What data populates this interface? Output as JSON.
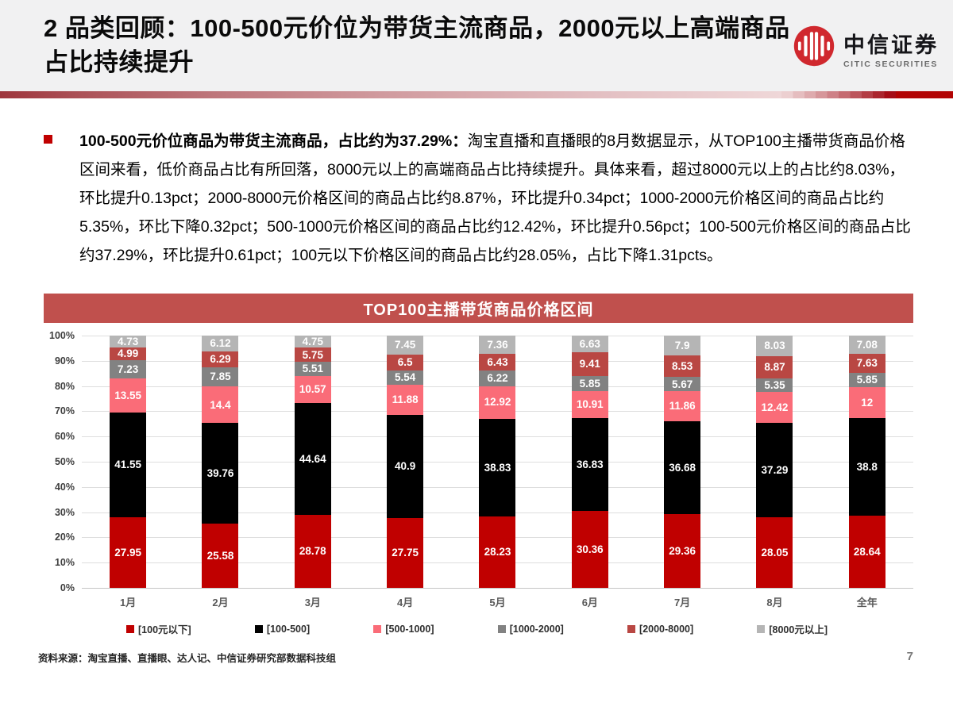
{
  "header": {
    "title": "2 品类回顾：100-500元价位为带货主流商品，2000元以上高端商品占比持续提升",
    "logo": {
      "brand_cn": "中信证券",
      "brand_en": "CITIC SECURITIES",
      "brand_color": "#d0282e"
    }
  },
  "body": {
    "lead": "100-500元价位商品为带货主流商品，占比约为37.29%：",
    "text": "淘宝直播和直播眼的8月数据显示，从TOP100主播带货商品价格区间来看，低价商品占比有所回落，8000元以上的高端商品占比持续提升。具体来看，超过8000元以上的占比约8.03%，环比提升0.13pct；2000-8000元价格区间的商品占比约8.87%，环比提升0.34pct；1000-2000元价格区间的商品占比约5.35%，环比下降0.32pct；500-1000元价格区间的商品占比约12.42%，环比提升0.56pct；100-500元价格区间的商品占比约37.29%，环比提升0.61pct；100元以下价格区间的商品占比约28.05%，占比下降1.31pcts。"
  },
  "chart_data": {
    "type": "bar",
    "stacked": true,
    "title": "TOP100主播带货商品价格区间",
    "title_bg": "#c0504d",
    "categories": [
      "1月",
      "2月",
      "3月",
      "4月",
      "5月",
      "6月",
      "7月",
      "8月",
      "全年"
    ],
    "series": [
      {
        "name": "[100元以下]",
        "color": "#c00000",
        "values": [
          27.95,
          25.58,
          28.78,
          27.75,
          28.23,
          30.36,
          29.36,
          28.05,
          28.64
        ]
      },
      {
        "name": "[100-500]",
        "color": "#000000",
        "values": [
          41.55,
          39.76,
          44.64,
          40.9,
          38.83,
          36.83,
          36.68,
          37.29,
          38.8
        ]
      },
      {
        "name": "[500-1000]",
        "color": "#fa6c78",
        "values": [
          13.55,
          14.4,
          10.57,
          11.88,
          12.92,
          10.91,
          11.86,
          12.42,
          12
        ]
      },
      {
        "name": "[1000-2000]",
        "color": "#828282",
        "values": [
          7.23,
          7.85,
          5.51,
          5.54,
          6.22,
          5.85,
          5.67,
          5.35,
          5.85
        ]
      },
      {
        "name": "[2000-8000]",
        "color": "#b94743",
        "values": [
          4.99,
          6.29,
          5.75,
          6.5,
          6.43,
          9.41,
          8.53,
          8.87,
          7.63
        ]
      },
      {
        "name": "[8000元以上]",
        "color": "#b5b5b5",
        "values": [
          4.73,
          6.12,
          4.75,
          7.45,
          7.36,
          6.63,
          7.9,
          8.03,
          7.08
        ]
      }
    ],
    "y_ticks": [
      "100%",
      "90%",
      "80%",
      "70%",
      "60%",
      "50%",
      "40%",
      "30%",
      "20%",
      "10%",
      "0%"
    ],
    "ylim": [
      0,
      100
    ],
    "grid": true,
    "legend_position": "bottom"
  },
  "footer": {
    "source": "资料来源：淘宝直播、直播眼、达人记、中信证券研究部数据科技组",
    "page": "7"
  }
}
